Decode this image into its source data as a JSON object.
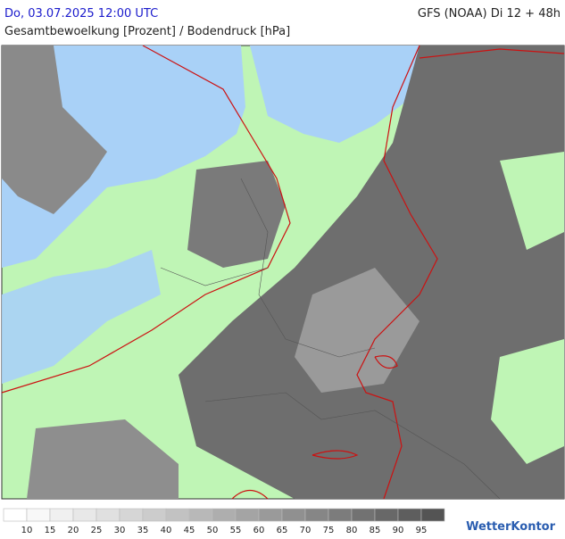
{
  "header": {
    "datetime": "Do, 03.07.2025 12:00 UTC",
    "model": "GFS (NOAA) Di 12 + 48h",
    "subtitle": "Gesamtbewoelkung [Prozent] / Bodendruck [hPa]"
  },
  "legend": {
    "labels": [
      10,
      15,
      20,
      25,
      30,
      35,
      40,
      45,
      50,
      55,
      60,
      65,
      70,
      75,
      80,
      85,
      90,
      95
    ],
    "colors": [
      "#ffffff",
      "#f8f8f8",
      "#f0f0f0",
      "#e8e8e8",
      "#e0e0e0",
      "#d6d6d6",
      "#cccccc",
      "#c2c2c2",
      "#b8b8b8",
      "#aeaeae",
      "#a4a4a4",
      "#9a9a9a",
      "#909090",
      "#868686",
      "#7c7c7c",
      "#727272",
      "#686868",
      "#5e5e5e",
      "#545454"
    ]
  },
  "brand": "WetterKontor"
}
